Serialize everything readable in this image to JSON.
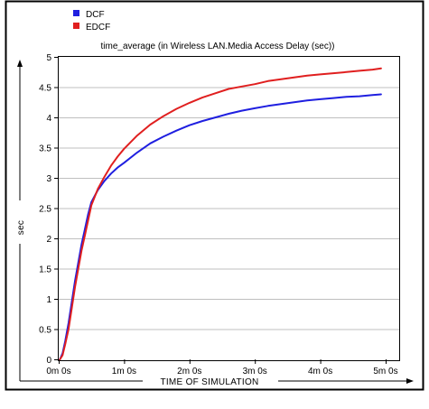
{
  "chart_data": {
    "type": "line",
    "title": "time_average (in Wireless LAN.Media Access Delay (sec))",
    "xlabel": "TIME OF SIMULATION",
    "ylabel": "sec",
    "xlim": [
      0,
      5
    ],
    "ylim": [
      0,
      5
    ],
    "x_ticks": [
      {
        "value": 0,
        "label": "0m 0s"
      },
      {
        "value": 1,
        "label": "1m 0s"
      },
      {
        "value": 2,
        "label": "2m 0s"
      },
      {
        "value": 3,
        "label": "3m 0s"
      },
      {
        "value": 4,
        "label": "4m 0s"
      },
      {
        "value": 5,
        "label": "5m 0s"
      }
    ],
    "y_ticks": [
      {
        "value": 0,
        "label": "0"
      },
      {
        "value": 0.5,
        "label": "0.5"
      },
      {
        "value": 1,
        "label": "1"
      },
      {
        "value": 1.5,
        "label": "1.5"
      },
      {
        "value": 2,
        "label": "2"
      },
      {
        "value": 2.5,
        "label": "2.5"
      },
      {
        "value": 3,
        "label": "3"
      },
      {
        "value": 3.5,
        "label": "3.5"
      },
      {
        "value": 4,
        "label": "4"
      },
      {
        "value": 4.5,
        "label": "4.5"
      },
      {
        "value": 5,
        "label": "5"
      }
    ],
    "grid": "horizontal",
    "legend_position": "top-left",
    "series": [
      {
        "name": "DCF",
        "color": "#1f1fe0",
        "x": [
          0.02,
          0.06,
          0.1,
          0.15,
          0.2,
          0.25,
          0.3,
          0.35,
          0.4,
          0.45,
          0.5,
          0.6,
          0.7,
          0.8,
          0.9,
          1.0,
          1.2,
          1.4,
          1.6,
          1.8,
          2.0,
          2.2,
          2.4,
          2.6,
          2.8,
          3.0,
          3.2,
          3.4,
          3.6,
          3.8,
          4.0,
          4.2,
          4.4,
          4.6,
          4.8,
          4.93
        ],
        "y": [
          0.0,
          0.1,
          0.3,
          0.6,
          0.95,
          1.3,
          1.6,
          1.9,
          2.15,
          2.4,
          2.6,
          2.8,
          2.95,
          3.07,
          3.17,
          3.25,
          3.42,
          3.57,
          3.68,
          3.78,
          3.87,
          3.94,
          4.0,
          4.06,
          4.11,
          4.15,
          4.19,
          4.22,
          4.25,
          4.28,
          4.3,
          4.32,
          4.34,
          4.35,
          4.37,
          4.38
        ]
      },
      {
        "name": "EDCF",
        "color": "#e01f1f",
        "x": [
          0.02,
          0.06,
          0.1,
          0.15,
          0.2,
          0.25,
          0.3,
          0.35,
          0.4,
          0.45,
          0.5,
          0.6,
          0.7,
          0.8,
          0.9,
          1.0,
          1.2,
          1.4,
          1.6,
          1.8,
          2.0,
          2.2,
          2.4,
          2.6,
          2.8,
          3.0,
          3.2,
          3.4,
          3.6,
          3.8,
          4.0,
          4.2,
          4.4,
          4.6,
          4.8,
          4.93
        ],
        "y": [
          0.0,
          0.07,
          0.25,
          0.5,
          0.85,
          1.2,
          1.5,
          1.8,
          2.05,
          2.3,
          2.55,
          2.82,
          3.02,
          3.2,
          3.35,
          3.48,
          3.7,
          3.88,
          4.02,
          4.14,
          4.24,
          4.33,
          4.4,
          4.47,
          4.51,
          4.55,
          4.6,
          4.63,
          4.66,
          4.69,
          4.71,
          4.73,
          4.75,
          4.77,
          4.79,
          4.81
        ]
      }
    ]
  }
}
